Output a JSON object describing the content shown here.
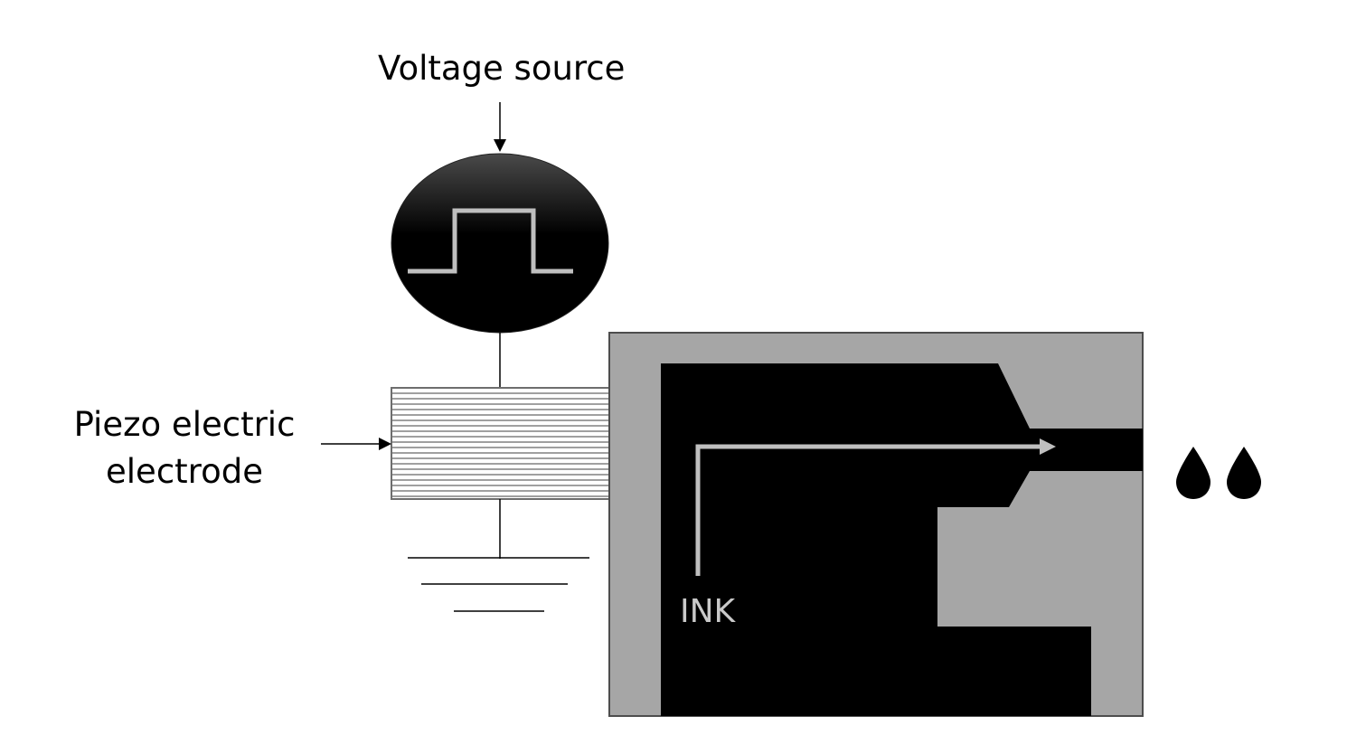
{
  "labels": {
    "voltage_source": "Voltage source",
    "piezo_line1": "Piezo electric",
    "piezo_line2": "electrode",
    "ink": "INK"
  },
  "colors": {
    "background": "#ffffff",
    "ink_chamber": "#000000",
    "printhead_body": "#a6a6a6",
    "pulse_and_flow_arrow": "#bfbfbf",
    "ink_label": "#c9c9c9",
    "droplet": "#000000"
  },
  "icons": {
    "voltage_waveform": "square-pulse-icon",
    "droplets": "ink-droplet-icon",
    "ground": "ground-symbol-icon"
  }
}
